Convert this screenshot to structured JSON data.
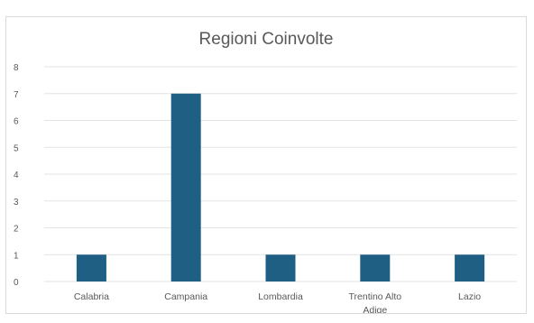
{
  "chart_data": {
    "type": "bar",
    "title": "Regioni Coinvolte",
    "categories": [
      "Calabria",
      "Campania",
      "Lombardia",
      "Trentino Alto Adige",
      "Lazio"
    ],
    "category_label_lines": [
      [
        "Calabria"
      ],
      [
        "Campania"
      ],
      [
        "Lombardia"
      ],
      [
        "Trentino Alto",
        "Adige"
      ],
      [
        "Lazio"
      ]
    ],
    "values": [
      1,
      7,
      1,
      1,
      1
    ],
    "ylim": [
      0,
      8
    ],
    "yticks": [
      0,
      1,
      2,
      3,
      4,
      5,
      6,
      7,
      8
    ],
    "grid": true,
    "legend": "none",
    "bar_color": "#1f5f84",
    "grid_color": "#e3e3e3",
    "text_color": "#595959"
  }
}
